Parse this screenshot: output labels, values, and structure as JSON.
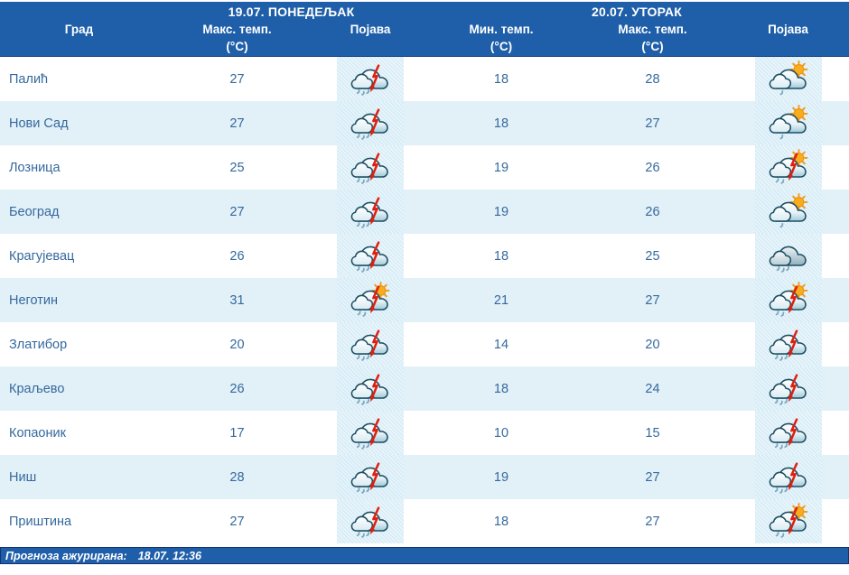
{
  "table": {
    "day1_title": "19.07. ПОНЕДЕЉАК",
    "day2_title": "20.07. УТОРАК",
    "columns": [
      {
        "label": "Град",
        "sub": ""
      },
      {
        "label": "Макс. темп.",
        "sub": "(°C)"
      },
      {
        "label": "Појава",
        "sub": ""
      },
      {
        "label": "Мин. темп.",
        "sub": "(°C)"
      },
      {
        "label": "Макс. темп.",
        "sub": "(°C)"
      },
      {
        "label": "Појава",
        "sub": ""
      }
    ],
    "rows": [
      {
        "city": "Палић",
        "d1_max": "27",
        "d1_icon": "storm-rain-icon",
        "d2_min": "18",
        "d2_max": "28",
        "d2_icon": "sun-cloud-drizzle-icon"
      },
      {
        "city": "Нови Сад",
        "d1_max": "27",
        "d1_icon": "storm-rain-icon",
        "d2_min": "18",
        "d2_max": "27",
        "d2_icon": "sun-cloud-drizzle-icon"
      },
      {
        "city": "Лозница",
        "d1_max": "25",
        "d1_icon": "storm-rain-icon",
        "d2_min": "19",
        "d2_max": "26",
        "d2_icon": "sun-storm-rain-icon"
      },
      {
        "city": "Београд",
        "d1_max": "27",
        "d1_icon": "storm-rain-icon",
        "d2_min": "19",
        "d2_max": "26",
        "d2_icon": "sun-cloud-drizzle-icon"
      },
      {
        "city": "Крагујевац",
        "d1_max": "26",
        "d1_icon": "storm-rain-icon",
        "d2_min": "18",
        "d2_max": "25",
        "d2_icon": "cloud-rain-icon"
      },
      {
        "city": "Неготин",
        "d1_max": "31",
        "d1_icon": "sun-storm-rain-icon",
        "d2_min": "21",
        "d2_max": "27",
        "d2_icon": "sun-storm-rain-icon"
      },
      {
        "city": "Златибор",
        "d1_max": "20",
        "d1_icon": "storm-rain-icon",
        "d2_min": "14",
        "d2_max": "20",
        "d2_icon": "storm-rain-icon"
      },
      {
        "city": "Краљево",
        "d1_max": "26",
        "d1_icon": "storm-rain-icon",
        "d2_min": "18",
        "d2_max": "24",
        "d2_icon": "storm-rain-icon"
      },
      {
        "city": "Копаоник",
        "d1_max": "17",
        "d1_icon": "storm-rain-icon",
        "d2_min": "10",
        "d2_max": "15",
        "d2_icon": "storm-rain-icon"
      },
      {
        "city": "Ниш",
        "d1_max": "28",
        "d1_icon": "storm-rain-icon",
        "d2_min": "19",
        "d2_max": "27",
        "d2_icon": "storm-rain-icon"
      },
      {
        "city": "Приштина",
        "d1_max": "27",
        "d1_icon": "storm-rain-icon",
        "d2_min": "18",
        "d2_max": "27",
        "d2_icon": "sun-storm-rain-icon"
      }
    ]
  },
  "footer": {
    "label": "Прогноза ажурирана:",
    "value": "18.07. 12:36"
  },
  "colors": {
    "header_bg": "#1f5fa9",
    "row_alt": "#e2f0f8",
    "body_text": "#35699d",
    "lightning_red": "#de1f10",
    "sun_orange": "#f8ad1e",
    "cloud_outline": "#1c4e63"
  }
}
